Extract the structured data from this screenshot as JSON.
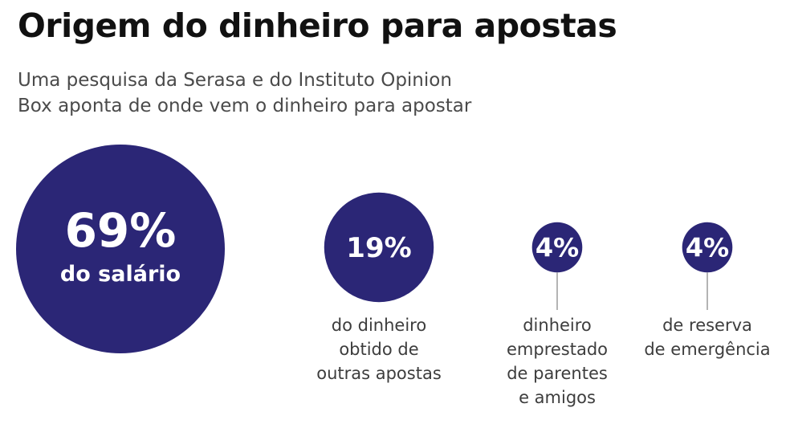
{
  "title": "Origem do dinheiro para apostas",
  "subtitle": [
    "Uma pesquisa da Serasa e do Instituto Opinion",
    "Box aponta de onde vem o dinheiro para apostar"
  ],
  "colors": {
    "bubble": "#2b2676",
    "connector": "#9a9a9a"
  },
  "chart_data": {
    "type": "bubble",
    "items": [
      {
        "value": 69,
        "value_label": "69%",
        "inside_caption": "do salário",
        "caption": []
      },
      {
        "value": 19,
        "value_label": "19%",
        "caption": [
          "do dinheiro",
          "obtido de",
          "outras apostas"
        ]
      },
      {
        "value": 4,
        "value_label": "4%",
        "caption": [
          "dinheiro",
          "emprestado",
          "de parentes",
          "e amigos"
        ]
      },
      {
        "value": 4,
        "value_label": "4%",
        "caption": [
          "de reserva",
          "de emergência"
        ]
      }
    ]
  }
}
